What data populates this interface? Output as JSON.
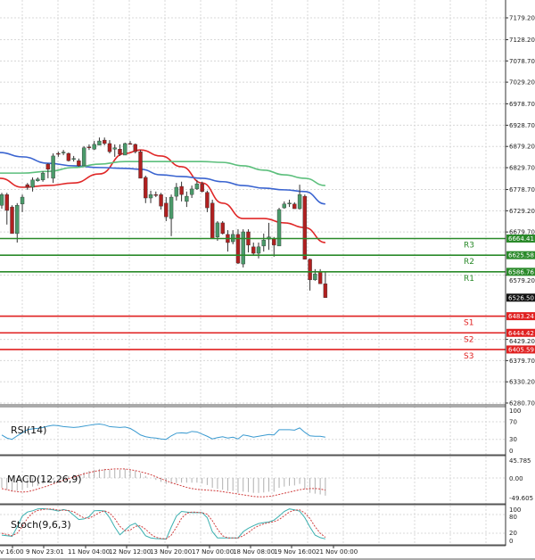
{
  "chart_data": [
    {
      "type": "candlestick",
      "price_axis": {
        "ylim": [
          6280.7,
          7179.2
        ],
        "tick_labels": [
          "7179.20",
          "7128.20",
          "7078.70",
          "7029.20",
          "6978.70",
          "6928.70",
          "6879.20",
          "6829.70",
          "6778.70",
          "6729.20",
          "6679.70",
          "6579.20",
          "6429.20",
          "6379.70",
          "6330.20",
          "6280.70"
        ],
        "ticks": [
          7179.2,
          7128.2,
          7078.7,
          7029.2,
          6978.7,
          6928.7,
          6879.2,
          6829.7,
          6778.7,
          6729.2,
          6679.7,
          6579.2,
          6429.2,
          6379.7,
          6330.2,
          6280.7
        ]
      },
      "grid": true,
      "candles_ohlc": [
        [
          6742,
          6771,
          6734,
          6767
        ],
        [
          6767,
          6771,
          6697,
          6730
        ],
        [
          6738,
          6742,
          6676,
          6676
        ],
        [
          6676,
          6747,
          6655,
          6742
        ],
        [
          6745,
          6767,
          6726,
          6761
        ],
        [
          6790,
          6794,
          6778,
          6784
        ],
        [
          6784,
          6807,
          6774,
          6801
        ],
        [
          6799,
          6807,
          6797,
          6803
        ],
        [
          6801,
          6821,
          6797,
          6817
        ],
        [
          6838,
          6840,
          6805,
          6826
        ],
        [
          6805,
          6863,
          6794,
          6857
        ],
        [
          6863,
          6867,
          6855,
          6861
        ],
        [
          6865,
          6871,
          6859,
          6866
        ],
        [
          6863,
          6865,
          6844,
          6846
        ],
        [
          6849,
          6857,
          6844,
          6851
        ],
        [
          6846,
          6851,
          6832,
          6834
        ],
        [
          6834,
          6880,
          6834,
          6876
        ],
        [
          6878,
          6884,
          6871,
          6877
        ],
        [
          6873,
          6892,
          6871,
          6884
        ],
        [
          6882,
          6900,
          6882,
          6892
        ],
        [
          6894,
          6900,
          6882,
          6886
        ],
        [
          6886,
          6894,
          6863,
          6867
        ],
        [
          6873,
          6884,
          6855,
          6876
        ],
        [
          6873,
          6884,
          6857,
          6861
        ],
        [
          6859,
          6888,
          6859,
          6886
        ],
        [
          6886,
          6892,
          6884,
          6885
        ],
        [
          6884,
          6886,
          6863,
          6867
        ],
        [
          6867,
          6871,
          6805,
          6805
        ],
        [
          6807,
          6811,
          6747,
          6759
        ],
        [
          6759,
          6776,
          6747,
          6767
        ],
        [
          6767,
          6774,
          6761,
          6765
        ],
        [
          6767,
          6771,
          6732,
          6740
        ],
        [
          6747,
          6761,
          6705,
          6715
        ],
        [
          6711,
          6767,
          6670,
          6761
        ],
        [
          6763,
          6794,
          6753,
          6784
        ],
        [
          6786,
          6797,
          6751,
          6767
        ],
        [
          6751,
          6774,
          6738,
          6763
        ],
        [
          6767,
          6788,
          6759,
          6780
        ],
        [
          6780,
          6801,
          6778,
          6792
        ],
        [
          6792,
          6797,
          6772,
          6774
        ],
        [
          6772,
          6776,
          6726,
          6736
        ],
        [
          6747,
          6755,
          6665,
          6665
        ],
        [
          6668,
          6705,
          6659,
          6701
        ],
        [
          6701,
          6705,
          6674,
          6676
        ],
        [
          6674,
          6684,
          6634,
          6655
        ],
        [
          6657,
          6684,
          6651,
          6674
        ],
        [
          6674,
          6686,
          6605,
          6607
        ],
        [
          6605,
          6686,
          6597,
          6680
        ],
        [
          6680,
          6686,
          6632,
          6649
        ],
        [
          6645,
          6655,
          6626,
          6630
        ],
        [
          6630,
          6655,
          6618,
          6645
        ],
        [
          6647,
          6676,
          6634,
          6661
        ],
        [
          6663,
          6701,
          6638,
          6668
        ],
        [
          6665,
          6668,
          6622,
          6649
        ],
        [
          6647,
          6736,
          6647,
          6732
        ],
        [
          6736,
          6751,
          6734,
          6745
        ],
        [
          6745,
          6755,
          6738,
          6747
        ],
        [
          6745,
          6749,
          6734,
          6734
        ],
        [
          6734,
          6790,
          6732,
          6767
        ],
        [
          6763,
          6767,
          6616,
          6616
        ],
        [
          6616,
          6618,
          6543,
          6568
        ],
        [
          6568,
          6593,
          6566,
          6582
        ],
        [
          6587,
          6593,
          6559,
          6559
        ],
        [
          6559,
          6586,
          6526,
          6526.5
        ]
      ],
      "moving_averages": {
        "sample_bars": [
          1,
          5,
          10,
          15,
          20,
          25,
          28,
          32,
          36,
          40,
          44,
          48,
          52,
          56,
          60,
          64
        ],
        "red": [
          6805,
          6784,
          6788,
          6794,
          6815,
          6863,
          6871,
          6857,
          6832,
          6794,
          6747,
          6711,
          6711,
          6701,
          6690,
          6655
        ],
        "blue": [
          6865,
          6855,
          6840,
          6834,
          6830,
          6828,
          6826,
          6813,
          6809,
          6805,
          6797,
          6788,
          6782,
          6778,
          6774,
          6745
        ],
        "green": [
          6817,
          6817,
          6821,
          6830,
          6838,
          6844,
          6844,
          6844,
          6844,
          6844,
          6842,
          6834,
          6824,
          6813,
          6805,
          6788
        ]
      },
      "current_price": "6526.50",
      "levels": [
        {
          "name": "R3",
          "value": "6664.41",
          "price": 6664.41,
          "kind": "resistance"
        },
        {
          "name": "R2",
          "value": "6625.58",
          "price": 6625.58,
          "kind": "resistance"
        },
        {
          "name": "R1",
          "value": "6586.76",
          "price": 6586.76,
          "kind": "resistance"
        },
        {
          "name": "S1",
          "value": "6483.24",
          "price": 6483.24,
          "kind": "support"
        },
        {
          "name": "S2",
          "value": "6444.42",
          "price": 6444.42,
          "kind": "support"
        },
        {
          "name": "S3",
          "value": "6405.59",
          "price": 6405.59,
          "kind": "support"
        }
      ]
    },
    {
      "type": "line",
      "label": "RSI(14)",
      "ylim": [
        0,
        100
      ],
      "tick_labels": [
        "100",
        "70",
        "30",
        "0"
      ],
      "values": [
        40,
        33,
        30,
        38,
        45,
        52,
        54,
        55,
        57,
        60,
        62,
        61,
        59,
        58,
        57,
        58,
        60,
        62,
        64,
        65,
        63,
        59,
        58,
        57,
        58,
        55,
        48,
        40,
        36,
        34,
        33,
        31,
        30,
        38,
        44,
        45,
        44,
        48,
        47,
        42,
        37,
        31,
        34,
        36,
        33,
        35,
        31,
        40,
        38,
        35,
        37,
        39,
        41,
        40,
        52,
        52,
        52,
        51,
        56,
        46,
        38,
        37,
        37,
        35
      ]
    },
    {
      "type": "bar+line",
      "label": "MACD(12,26,9)",
      "ylim": [
        -49.605,
        45.785
      ],
      "tick_labels": [
        "45.785",
        "0.00",
        "-49.605"
      ],
      "histogram": [
        -25,
        -30,
        -35,
        -33,
        -30,
        -25,
        -22,
        -20,
        -15,
        -10,
        -5,
        0,
        3,
        5,
        8,
        10,
        14,
        17,
        20,
        22,
        22,
        20,
        20,
        20,
        22,
        20,
        17,
        12,
        5,
        0,
        -5,
        -10,
        -15,
        -15,
        -13,
        -12,
        -12,
        -12,
        -12,
        -14,
        -18,
        -25,
        -28,
        -30,
        -33,
        -33,
        -38,
        -35,
        -36,
        -38,
        -38,
        -37,
        -35,
        -35,
        -25,
        -22,
        -20,
        -19,
        -15,
        -28,
        -38,
        -40,
        -42,
        -45
      ],
      "signal": [
        -27,
        -30,
        -33,
        -35,
        -36,
        -35,
        -32,
        -28,
        -24,
        -20,
        -15,
        -10,
        -6,
        -2,
        2,
        6,
        10,
        13,
        16,
        18,
        20,
        21,
        22,
        22,
        22,
        20,
        18,
        15,
        12,
        8,
        3,
        -2,
        -7,
        -12,
        -16,
        -20,
        -24,
        -27,
        -29,
        -30,
        -31,
        -32,
        -33,
        -35,
        -37,
        -39,
        -41,
        -43,
        -45,
        -47,
        -48,
        -48,
        -47,
        -45,
        -42,
        -39,
        -36,
        -33,
        -30,
        -28,
        -27,
        -27,
        -28,
        -31
      ]
    },
    {
      "type": "line",
      "label": "Stoch(9,6,3)",
      "ylim": [
        0,
        100
      ],
      "tick_labels": [
        "100",
        "80",
        "20",
        "0"
      ],
      "main": [
        14,
        12,
        10,
        40,
        75,
        88,
        92,
        98,
        99,
        97,
        95,
        91,
        96,
        92,
        78,
        64,
        66,
        73,
        92,
        93,
        91,
        70,
        40,
        15,
        30,
        45,
        52,
        35,
        12,
        5,
        3,
        2,
        1,
        40,
        75,
        90,
        88,
        86,
        86,
        86,
        70,
        25,
        5,
        5,
        5,
        5,
        5,
        25,
        36,
        44,
        51,
        54,
        56,
        62,
        75,
        90,
        98,
        95,
        91,
        70,
        40,
        14,
        6,
        2
      ],
      "signal": [
        20,
        16,
        12,
        20,
        42,
        68,
        85,
        93,
        96,
        98,
        97,
        94,
        94,
        93,
        89,
        78,
        69,
        68,
        77,
        86,
        92,
        85,
        67,
        42,
        28,
        30,
        42,
        44,
        33,
        17,
        7,
        3,
        2,
        14,
        39,
        68,
        84,
        88,
        87,
        86,
        81,
        60,
        33,
        12,
        5,
        5,
        5,
        12,
        22,
        35,
        44,
        50,
        54,
        57,
        64,
        76,
        88,
        94,
        95,
        85,
        67,
        41,
        20,
        7
      ]
    }
  ],
  "x_axis": {
    "labels": [
      "v 16:00",
      "9 Nov 23:01",
      "11 Nov 04:00",
      "12 Nov 12:00",
      "13 Nov 20:00",
      "17 Nov 00:00",
      "18 Nov 08:00",
      "19 Nov 16:00",
      "21 Nov 00:00"
    ]
  },
  "colors": {
    "bull": "#4a9a6a",
    "bear": "#b02020",
    "ma_red": "#e02828",
    "ma_blue": "#3a64d0",
    "ma_green": "#5cbf7c",
    "resistance": "#2a8a2a",
    "support": "#e02020",
    "rsi": "#3a9ad0",
    "stoch_main": "#3ab0b0",
    "signal": "#d04040",
    "hist": "#b0b0b0"
  }
}
